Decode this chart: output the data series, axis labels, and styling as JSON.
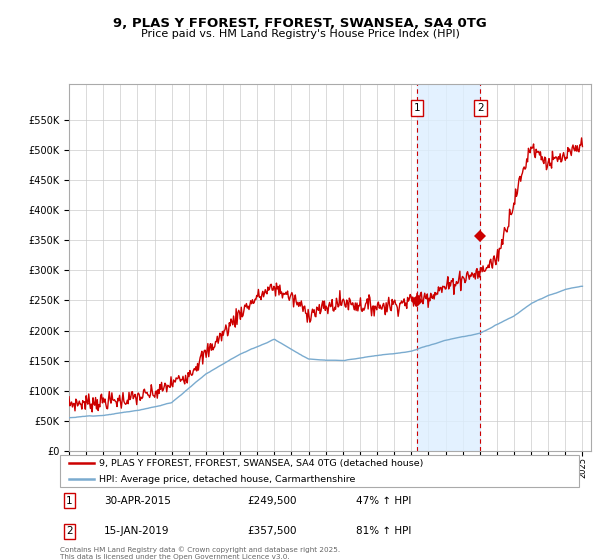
{
  "title_line1": "9, PLAS Y FFOREST, FFOREST, SWANSEA, SA4 0TG",
  "title_line2": "Price paid vs. HM Land Registry's House Price Index (HPI)",
  "legend_line1": "9, PLAS Y FFOREST, FFOREST, SWANSEA, SA4 0TG (detached house)",
  "legend_line2": "HPI: Average price, detached house, Carmarthenshire",
  "table_rows": [
    {
      "num": "1",
      "date": "30-APR-2015",
      "price": "£249,500",
      "pct": "47% ↑ HPI"
    },
    {
      "num": "2",
      "date": "15-JAN-2019",
      "price": "£357,500",
      "pct": "81% ↑ HPI"
    }
  ],
  "copyright": "Contains HM Land Registry data © Crown copyright and database right 2025.\nThis data is licensed under the Open Government Licence v3.0.",
  "sale1_year": 2015.33,
  "sale1_price": 249500,
  "sale2_year": 2019.04,
  "sale2_price": 357500,
  "hpi_color": "#7aabcf",
  "price_color": "#cc0000",
  "grid_color": "#cccccc",
  "vline_color": "#cc0000",
  "shade_color": "#ddeeff",
  "ylim_max": 600000,
  "ylim_min": 0,
  "yticks": [
    0,
    50000,
    100000,
    150000,
    200000,
    250000,
    300000,
    350000,
    400000,
    450000,
    500000,
    550000
  ],
  "xlim_min": 1995,
  "xlim_max": 2025
}
